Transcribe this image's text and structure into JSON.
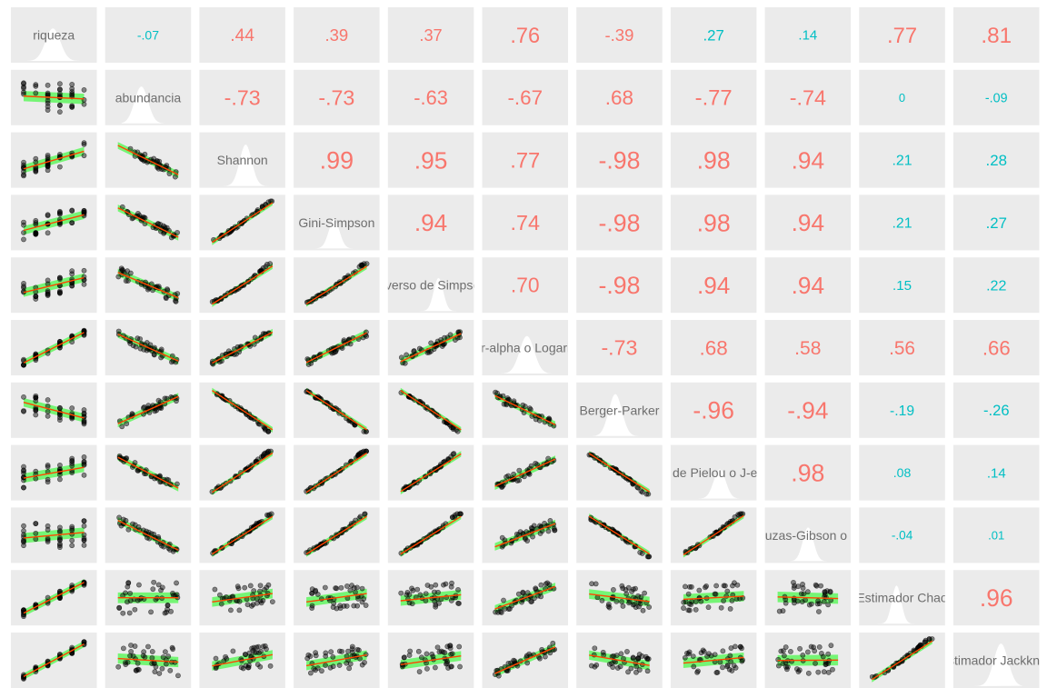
{
  "chart_data": {
    "type": "scatter",
    "variables": [
      "riqueza",
      "abundancia",
      "Shannon",
      "Gini-Simpson",
      "Inverso de Simpson",
      "Fisher-alpha o Logaritmica",
      "Berger-Parker",
      "Equidad de Pielou o J-evenness",
      "Buzas-Gibson o E",
      "Estimador Chao",
      "Estimador Jackknife"
    ],
    "correlation_labels": [
      [
        null,
        "-.07",
        ".44",
        ".39",
        ".37",
        ".76",
        "-.39",
        ".27",
        ".14",
        ".77",
        ".81"
      ],
      [
        null,
        null,
        "-.73",
        "-.73",
        "-.63",
        "-.67",
        ".68",
        "-.77",
        "-.74",
        "0",
        "-.09"
      ],
      [
        null,
        null,
        null,
        ".99",
        ".95",
        ".77",
        "-.98",
        ".98",
        ".94",
        ".21",
        ".28"
      ],
      [
        null,
        null,
        null,
        null,
        ".94",
        ".74",
        "-.98",
        ".98",
        ".94",
        ".21",
        ".27"
      ],
      [
        null,
        null,
        null,
        null,
        null,
        ".70",
        "-.98",
        ".94",
        ".94",
        ".15",
        ".22"
      ],
      [
        null,
        null,
        null,
        null,
        null,
        null,
        "-.73",
        ".68",
        ".58",
        ".56",
        ".66"
      ],
      [
        null,
        null,
        null,
        null,
        null,
        null,
        null,
        "-.96",
        "-.94",
        "-.19",
        "-.26"
      ],
      [
        null,
        null,
        null,
        null,
        null,
        null,
        null,
        null,
        ".98",
        ".08",
        ".14"
      ],
      [
        null,
        null,
        null,
        null,
        null,
        null,
        null,
        null,
        null,
        "-.04",
        ".01"
      ],
      [
        null,
        null,
        null,
        null,
        null,
        null,
        null,
        null,
        null,
        null,
        ".96"
      ],
      [
        null,
        null,
        null,
        null,
        null,
        null,
        null,
        null,
        null,
        null,
        null
      ]
    ],
    "grid": false,
    "colors": {
      "panel_bg": "#ebebeb",
      "significant": "#f8766d",
      "not_significant": "#00bfc4",
      "density_fill": "#ffffff",
      "points": "#000000",
      "confidence_band": "#00ff00",
      "fit_line": "#ff4500",
      "label": "#6e6e6e"
    }
  }
}
